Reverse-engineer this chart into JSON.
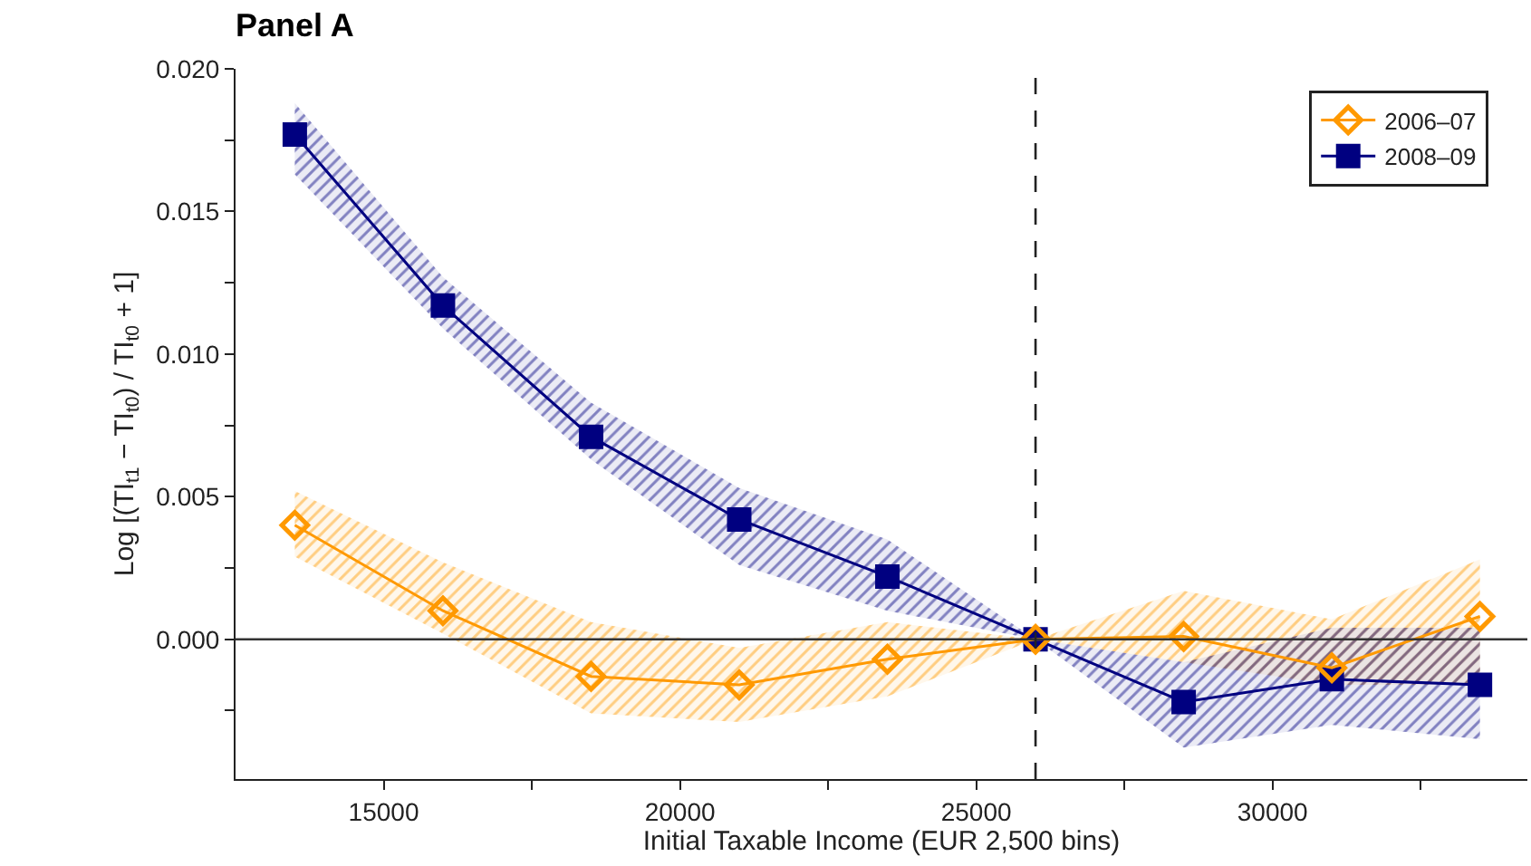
{
  "chart_data": {
    "type": "line",
    "title": "Panel A",
    "xlabel": "Initial Taxable Income (EUR 2,500 bins)",
    "ylabel": "Log [(TI$_{t1}$ − TI$_{t0}$) / TI$_{t0}$ + 1]",
    "x": [
      13500,
      16000,
      18500,
      21000,
      23500,
      26000,
      28500,
      31000,
      33500
    ],
    "series": [
      {
        "name": "2006–07",
        "color": "#ff9900",
        "marker": "diamond",
        "values": [
          0.004,
          0.001,
          -0.0013,
          -0.0016,
          -0.0007,
          0,
          0.0001,
          -0.001,
          0.0008
        ],
        "lower": [
          0.0029,
          0.0002,
          -0.0026,
          -0.0029,
          -0.002,
          0,
          -0.0008,
          -0.0016,
          -0.0016
        ],
        "upper": [
          0.0052,
          0.0027,
          0.0006,
          -0.0003,
          0.0006,
          0,
          0.0017,
          0.0007,
          0.0028
        ]
      },
      {
        "name": "2008–09",
        "color": "#000080",
        "marker": "square",
        "values": [
          0.0177,
          0.0117,
          0.0071,
          0.0042,
          0.0022,
          0,
          -0.0022,
          -0.0014,
          -0.0016
        ],
        "lower": [
          0.0163,
          0.0109,
          0.0063,
          0.0026,
          0.001,
          0,
          -0.0038,
          -0.003,
          -0.0035
        ],
        "upper": [
          0.0188,
          0.0127,
          0.0083,
          0.0053,
          0.0035,
          0,
          -0.0008,
          0.0004,
          0.0004
        ]
      }
    ],
    "xlim": [
      12500,
      34300
    ],
    "ylim": [
      -0.0049,
      0.02
    ],
    "xticks": [
      15000,
      {
        "value": 17500,
        "label": null
      },
      20000,
      {
        "value": 22500,
        "label": null
      },
      25000,
      {
        "value": 27500,
        "label": null
      },
      30000,
      {
        "value": 32500,
        "label": null
      }
    ],
    "yticks": [
      {
        "value": -0.0025,
        "label": null
      },
      {
        "value": 0,
        "label": "0.000"
      },
      {
        "value": 0.0025,
        "label": null
      },
      {
        "value": 0.005,
        "label": "0.005"
      },
      {
        "value": 0.0075,
        "label": null
      },
      {
        "value": 0.01,
        "label": "0.010"
      },
      {
        "value": 0.0125,
        "label": null
      },
      {
        "value": 0.015,
        "label": "0.015"
      },
      {
        "value": 0.0175,
        "label": null
      },
      {
        "value": 0.02,
        "label": "0.020"
      }
    ],
    "ref_lines": [
      {
        "axis": "y",
        "value": 0,
        "color": "#333333",
        "line_style": "solid"
      },
      {
        "axis": "x",
        "value": 26000,
        "color": "#222222",
        "line_style": "dashed"
      }
    ],
    "grid": false,
    "legend": "top right"
  }
}
